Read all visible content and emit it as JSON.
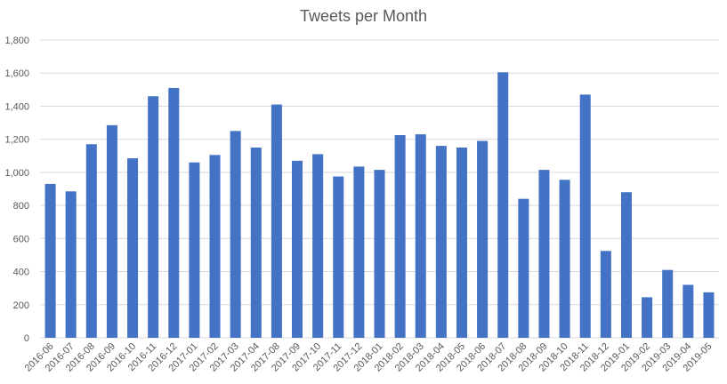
{
  "chart_data": {
    "type": "bar",
    "title": "Tweets per Month",
    "xlabel": "",
    "ylabel": "",
    "ylim": [
      0,
      1800
    ],
    "yticks": [
      0,
      200,
      400,
      600,
      800,
      1000,
      1200,
      1400,
      1600,
      1800
    ],
    "ytick_labels": [
      "0",
      "200",
      "400",
      "600",
      "800",
      "1,000",
      "1,200",
      "1,400",
      "1,600",
      "1,800"
    ],
    "grid": "horizontal",
    "legend": "none",
    "bar_color": "#4472C4",
    "grid_color": "#D9D9D9",
    "categories": [
      "2016-06",
      "2016-07",
      "2016-08",
      "2016-09",
      "2016-10",
      "2016-11",
      "2016-12",
      "2017-01",
      "2017-02",
      "2017-03",
      "2017-04",
      "2017-08",
      "2017-09",
      "2017-10",
      "2017-11",
      "2017-12",
      "2018-01",
      "2018-02",
      "2018-03",
      "2018-04",
      "2018-05",
      "2018-06",
      "2018-07",
      "2018-08",
      "2018-09",
      "2018-10",
      "2018-11",
      "2018-12",
      "2019-01",
      "2019-02",
      "2019-03",
      "2019-04",
      "2019-05"
    ],
    "values": [
      930,
      885,
      1170,
      1285,
      1085,
      1460,
      1510,
      1060,
      1105,
      1250,
      1150,
      1410,
      1070,
      1110,
      975,
      1035,
      1015,
      1225,
      1230,
      1160,
      1150,
      1190,
      1605,
      840,
      1015,
      955,
      1470,
      525,
      880,
      245,
      410,
      320,
      275
    ]
  }
}
